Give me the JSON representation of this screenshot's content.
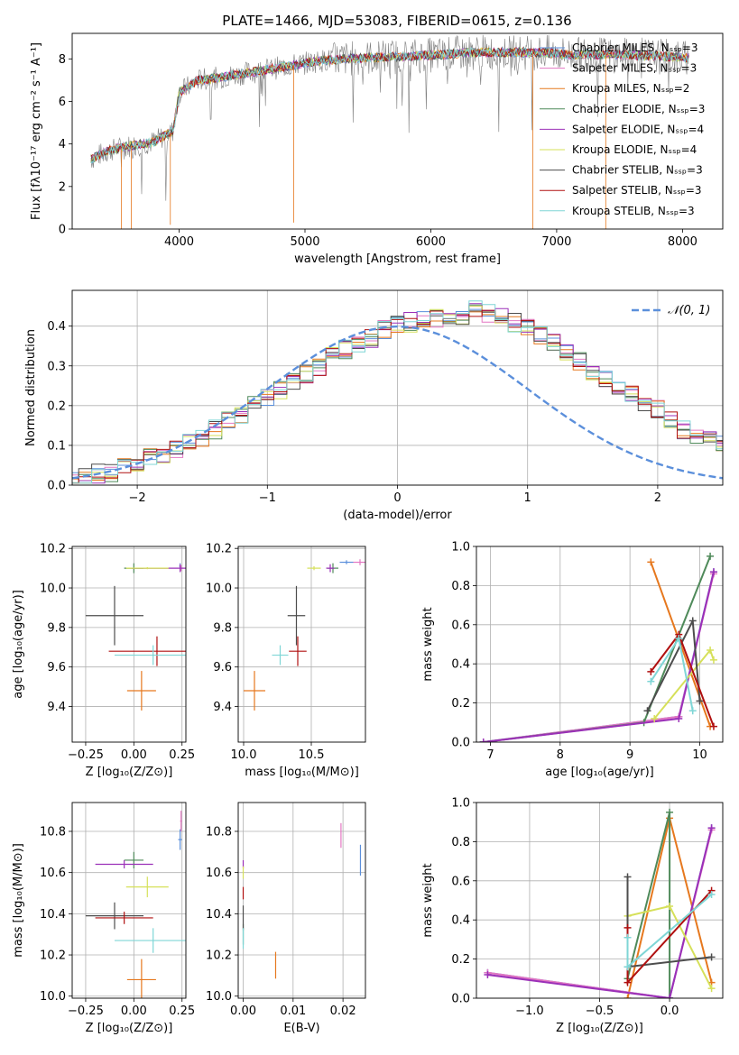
{
  "colors": {
    "chabrier_miles": "#5b8fdb",
    "salpeter_miles": "#e377c2",
    "kroupa_miles": "#e6781e",
    "chabrier_elodie": "#4f8a5a",
    "salpeter_elodie": "#9b30b8",
    "kroupa_elodie": "#d6e05a",
    "chabrier_stelib": "#4d4d4d",
    "salpeter_stelib": "#b01010",
    "kroupa_stelib": "#7fd6d6",
    "normal": "#5b8fdb",
    "grid": "#b0b0b0"
  },
  "chart_data": [
    {
      "id": "spectrum",
      "type": "line",
      "title": "PLATE=1466, MJD=53083, FIBERID=0615, z=0.136",
      "xlabel": "wavelength [Angstrom, rest frame]",
      "ylabel": "Flux [fλ10⁻¹⁷ erg cm⁻² s⁻¹ A⁻¹]",
      "xlim": [
        3150,
        8320
      ],
      "ylim": [
        0,
        9.2
      ],
      "xticks": [
        4000,
        5000,
        6000,
        7000,
        8000
      ],
      "yticks": [
        0,
        2,
        4,
        6,
        8
      ],
      "continuum": {
        "x": [
          3300,
          3450,
          3600,
          3800,
          3950,
          4000,
          4150,
          4300,
          4500,
          4700,
          4900,
          5100,
          5300,
          5500,
          5700,
          5900,
          6100,
          6300,
          6500,
          6700,
          6900,
          7100,
          7300,
          7500,
          7700,
          7900,
          8050
        ],
        "y": [
          3.3,
          3.7,
          3.9,
          4.1,
          4.6,
          6.4,
          7.0,
          7.1,
          7.3,
          7.5,
          7.7,
          7.9,
          8.0,
          8.05,
          8.1,
          8.15,
          8.2,
          8.3,
          8.3,
          8.3,
          8.3,
          8.2,
          8.2,
          8.2,
          8.15,
          8.1,
          8.05
        ]
      },
      "legend": [
        "Chabrier MILES, Nₛₛₚ=3",
        "Salpeter MILES, Nₛₛₚ=3",
        "Kroupa MILES, Nₛₛₚ=2",
        "Chabrier ELODIE, Nₛₛₚ=3",
        "Salpeter ELODIE, Nₛₛₚ=4",
        "Kroupa ELODIE, Nₛₛₚ=4",
        "Chabrier STELIB, Nₛₛₚ=3",
        "Salpeter STELIB, Nₛₛₚ=3",
        "Kroupa STELIB, Nₛₛₚ=3"
      ]
    },
    {
      "id": "residuals",
      "type": "line",
      "xlabel": "(data-model)/error",
      "ylabel": "Normed distribution",
      "xlim": [
        -2.5,
        2.5
      ],
      "ylim": [
        0,
        0.49
      ],
      "xticks": [
        -2,
        -1,
        0,
        1,
        2
      ],
      "yticks": [
        0.0,
        0.1,
        0.2,
        0.3,
        0.4
      ],
      "legend": [
        "𝒩(0, 1)"
      ],
      "bin_width": 0.1,
      "histogram_envelope": [
        0.01,
        0.02,
        0.03,
        0.03,
        0.05,
        0.06,
        0.07,
        0.08,
        0.09,
        0.11,
        0.12,
        0.14,
        0.16,
        0.18,
        0.2,
        0.22,
        0.24,
        0.26,
        0.28,
        0.3,
        0.33,
        0.34,
        0.36,
        0.37,
        0.39,
        0.4,
        0.41,
        0.42,
        0.42,
        0.42,
        0.42,
        0.44,
        0.43,
        0.42,
        0.41,
        0.4,
        0.38,
        0.36,
        0.34,
        0.31,
        0.29,
        0.27,
        0.25,
        0.23,
        0.21,
        0.19,
        0.16,
        0.14,
        0.13,
        0.11,
        0.1
      ]
    },
    {
      "id": "age_vs_Z",
      "type": "scatter",
      "xlabel": "Z [log₁₀(Z/Z⊙)]",
      "ylabel": "age  [log₁₀(age/yr)]",
      "xlim": [
        -0.32,
        0.27
      ],
      "ylim": [
        9.22,
        10.21
      ],
      "xticks": [
        -0.25,
        0.0,
        0.25
      ],
      "yticks": [
        9.4,
        9.6,
        9.8,
        10.0,
        10.2
      ],
      "points": [
        {
          "s": "chabrier_miles",
          "x": 0.24,
          "y": 10.11,
          "xe": 0.01,
          "ye": 0.03
        },
        {
          "s": "salpeter_miles",
          "x": 0.245,
          "y": 10.1,
          "xe": 0.01,
          "ye": 0.03
        },
        {
          "s": "kroupa_miles",
          "x": 0.04,
          "y": 9.48,
          "xe": 0.15,
          "ye": 0.2
        },
        {
          "s": "chabrier_elodie",
          "x": 0.0,
          "y": 10.1,
          "xe": 0.1,
          "ye": 0.05
        },
        {
          "s": "salpeter_elodie",
          "x": 0.24,
          "y": 10.1,
          "xe": 0.5,
          "ye": 0.04
        },
        {
          "s": "kroupa_elodie",
          "x": 0.07,
          "y": 10.1,
          "xe": 0.22,
          "ye": 0.01
        },
        {
          "s": "chabrier_stelib",
          "x": -0.1,
          "y": 9.86,
          "xe": 0.3,
          "ye": 0.3
        },
        {
          "s": "salpeter_stelib",
          "x": 0.12,
          "y": 9.68,
          "xe": 0.5,
          "ye": 0.15
        },
        {
          "s": "kroupa_stelib",
          "x": 0.1,
          "y": 9.66,
          "xe": 0.4,
          "ye": 0.1
        }
      ]
    },
    {
      "id": "age_vs_mass",
      "type": "scatter",
      "xlabel": "mass [log₁₀(M/M⊙)]",
      "ylabel": "",
      "xlim": [
        9.96,
        10.9
      ],
      "ylim": [
        9.22,
        10.21
      ],
      "xticks": [
        10.0,
        10.5
      ],
      "yticks": [
        9.4,
        9.6,
        9.8,
        10.0,
        10.2
      ],
      "points": [
        {
          "s": "chabrier_miles",
          "x": 10.76,
          "y": 10.13,
          "xe": 0.1,
          "ye": 0.02
        },
        {
          "s": "salpeter_miles",
          "x": 10.86,
          "y": 10.13,
          "xe": 0.1,
          "ye": 0.03
        },
        {
          "s": "kroupa_miles",
          "x": 10.08,
          "y": 9.48,
          "xe": 0.16,
          "ye": 0.2
        },
        {
          "s": "chabrier_elodie",
          "x": 10.66,
          "y": 10.1,
          "xe": 0.08,
          "ye": 0.05
        },
        {
          "s": "salpeter_elodie",
          "x": 10.64,
          "y": 10.1,
          "xe": 0.06,
          "ye": 0.04
        },
        {
          "s": "kroupa_elodie",
          "x": 10.52,
          "y": 10.1,
          "xe": 0.1,
          "ye": 0.02
        },
        {
          "s": "chabrier_stelib",
          "x": 10.39,
          "y": 9.86,
          "xe": 0.13,
          "ye": 0.3
        },
        {
          "s": "salpeter_stelib",
          "x": 10.4,
          "y": 9.68,
          "xe": 0.13,
          "ye": 0.15
        },
        {
          "s": "kroupa_stelib",
          "x": 10.27,
          "y": 9.66,
          "xe": 0.12,
          "ye": 0.1
        }
      ]
    },
    {
      "id": "massweight_vs_age",
      "type": "line",
      "xlabel": "age  [log₁₀(age/yr)]",
      "ylabel": "mass weight",
      "xlim": [
        6.8,
        10.33
      ],
      "ylim": [
        0,
        1.0
      ],
      "xticks": [
        7,
        8,
        9,
        10
      ],
      "yticks": [
        0.0,
        0.2,
        0.4,
        0.6,
        0.8,
        1.0
      ],
      "series": [
        {
          "s": "kroupa_miles",
          "x": [
            9.3,
            10.15
          ],
          "y": [
            0.92,
            0.08
          ]
        },
        {
          "s": "chabrier_miles",
          "x": [
            6.9,
            9.7,
            10.2
          ],
          "y": [
            0.0,
            0.13,
            0.87
          ]
        },
        {
          "s": "salpeter_miles",
          "x": [
            6.9,
            9.7,
            10.2
          ],
          "y": [
            0.0,
            0.13,
            0.86
          ]
        },
        {
          "s": "chabrier_elodie",
          "x": [
            6.9,
            9.2,
            10.15
          ],
          "y": [
            0.0,
            0.1,
            0.95
          ]
        },
        {
          "s": "salpeter_elodie",
          "x": [
            6.9,
            9.7,
            10.2
          ],
          "y": [
            0.0,
            0.12,
            0.87
          ]
        },
        {
          "s": "kroupa_elodie",
          "x": [
            9.35,
            10.15,
            10.2
          ],
          "y": [
            0.12,
            0.47,
            0.42
          ]
        },
        {
          "s": "chabrier_stelib",
          "x": [
            9.25,
            9.9,
            10.0
          ],
          "y": [
            0.16,
            0.62,
            0.21
          ]
        },
        {
          "s": "salpeter_stelib",
          "x": [
            9.3,
            9.7,
            10.2
          ],
          "y": [
            0.36,
            0.55,
            0.08
          ]
        },
        {
          "s": "kroupa_stelib",
          "x": [
            9.3,
            9.7,
            9.9
          ],
          "y": [
            0.31,
            0.53,
            0.16
          ]
        }
      ]
    },
    {
      "id": "mass_vs_Z",
      "type": "scatter",
      "xlabel": "Z [log₁₀(Z/Z⊙)]",
      "ylabel": "mass [log₁₀(M/M⊙)]",
      "xlim": [
        -0.32,
        0.27
      ],
      "ylim": [
        9.99,
        10.94
      ],
      "xticks": [
        -0.25,
        0.0,
        0.25
      ],
      "yticks": [
        10.0,
        10.2,
        10.4,
        10.6,
        10.8
      ],
      "points": [
        {
          "s": "chabrier_miles",
          "x": 0.24,
          "y": 10.76,
          "xe": 0.02,
          "ye": 0.1
        },
        {
          "s": "salpeter_miles",
          "x": 0.245,
          "y": 10.85,
          "xe": 0.01,
          "ye": 0.1
        },
        {
          "s": "kroupa_miles",
          "x": 0.04,
          "y": 10.08,
          "xe": 0.15,
          "ye": 0.2
        },
        {
          "s": "chabrier_elodie",
          "x": 0.0,
          "y": 10.66,
          "xe": 0.1,
          "ye": 0.08
        },
        {
          "s": "salpeter_elodie",
          "x": -0.05,
          "y": 10.64,
          "xe": 0.3,
          "ye": 0.04
        },
        {
          "s": "kroupa_elodie",
          "x": 0.07,
          "y": 10.53,
          "xe": 0.22,
          "ye": 0.1
        },
        {
          "s": "chabrier_stelib",
          "x": -0.1,
          "y": 10.39,
          "xe": 0.3,
          "ye": 0.13
        },
        {
          "s": "salpeter_stelib",
          "x": -0.05,
          "y": 10.38,
          "xe": 0.3,
          "ye": 0.06
        },
        {
          "s": "kroupa_stelib",
          "x": 0.1,
          "y": 10.27,
          "xe": 0.4,
          "ye": 0.12
        }
      ]
    },
    {
      "id": "mass_vs_ebv",
      "type": "scatter",
      "xlabel": "E(B-V)",
      "ylabel": "",
      "xlim": [
        -0.001,
        0.0245
      ],
      "ylim": [
        9.99,
        10.94
      ],
      "xticks": [
        0.0,
        0.01,
        0.02
      ],
      "yticks": [
        10.0,
        10.2,
        10.4,
        10.6,
        10.8
      ],
      "points": [
        {
          "s": "chabrier_miles",
          "x": 0.0235,
          "y": 10.66,
          "xe": 0.0,
          "ye": 0.15
        },
        {
          "s": "salpeter_miles",
          "x": 0.0196,
          "y": 10.78,
          "xe": 0.0,
          "ye": 0.12
        },
        {
          "s": "kroupa_miles",
          "x": 0.0065,
          "y": 10.15,
          "xe": 0.0,
          "ye": 0.13
        },
        {
          "s": "chabrier_elodie",
          "x": 0.0,
          "y": 10.3,
          "xe": 0.0,
          "ye": 0.1
        },
        {
          "s": "salpeter_elodie",
          "x": 0.0,
          "y": 10.64,
          "xe": 0.0,
          "ye": 0.04
        },
        {
          "s": "kroupa_elodie",
          "x": 0.0,
          "y": 10.6,
          "xe": 0.0,
          "ye": 0.06
        },
        {
          "s": "chabrier_stelib",
          "x": 0.0,
          "y": 10.38,
          "xe": 0.0,
          "ye": 0.12
        },
        {
          "s": "salpeter_stelib",
          "x": 0.0,
          "y": 10.5,
          "xe": 0.0,
          "ye": 0.06
        },
        {
          "s": "kroupa_stelib",
          "x": 0.0,
          "y": 10.28,
          "xe": 0.0,
          "ye": 0.1
        }
      ]
    },
    {
      "id": "massweight_vs_Z",
      "type": "line",
      "xlabel": "Z [log₁₀(Z/Z⊙)]",
      "ylabel": "mass weight",
      "xlim": [
        -1.38,
        0.38
      ],
      "ylim": [
        0,
        1.0
      ],
      "xticks": [
        -1.0,
        -0.5,
        0.0
      ],
      "yticks": [
        0.0,
        0.2,
        0.4,
        0.6,
        0.8,
        1.0
      ],
      "series": [
        {
          "s": "kroupa_miles",
          "x": [
            -0.3,
            0.0,
            0.3
          ],
          "y": [
            0.0,
            0.92,
            0.08
          ]
        },
        {
          "s": "chabrier_miles",
          "x": [
            -1.3,
            0.0,
            0.3
          ],
          "y": [
            0.13,
            0.0,
            0.87
          ]
        },
        {
          "s": "salpeter_miles",
          "x": [
            -1.3,
            0.0,
            0.3
          ],
          "y": [
            0.13,
            0.0,
            0.86
          ]
        },
        {
          "s": "chabrier_elodie",
          "x": [
            -0.3,
            0.0,
            0.0
          ],
          "y": [
            0.1,
            0.95,
            0.0
          ]
        },
        {
          "s": "salpeter_elodie",
          "x": [
            -1.3,
            0.0,
            0.3
          ],
          "y": [
            0.12,
            0.0,
            0.87
          ]
        },
        {
          "s": "kroupa_elodie",
          "x": [
            -0.3,
            0.0,
            0.3
          ],
          "y": [
            0.42,
            0.47,
            0.05
          ]
        },
        {
          "s": "chabrier_stelib",
          "x": [
            -0.3,
            -0.3,
            0.3
          ],
          "y": [
            0.62,
            0.16,
            0.21
          ]
        },
        {
          "s": "salpeter_stelib",
          "x": [
            -0.3,
            -0.3,
            0.3
          ],
          "y": [
            0.36,
            0.08,
            0.55
          ]
        },
        {
          "s": "kroupa_stelib",
          "x": [
            -0.3,
            -0.3,
            0.3
          ],
          "y": [
            0.31,
            0.16,
            0.53
          ]
        }
      ]
    }
  ]
}
